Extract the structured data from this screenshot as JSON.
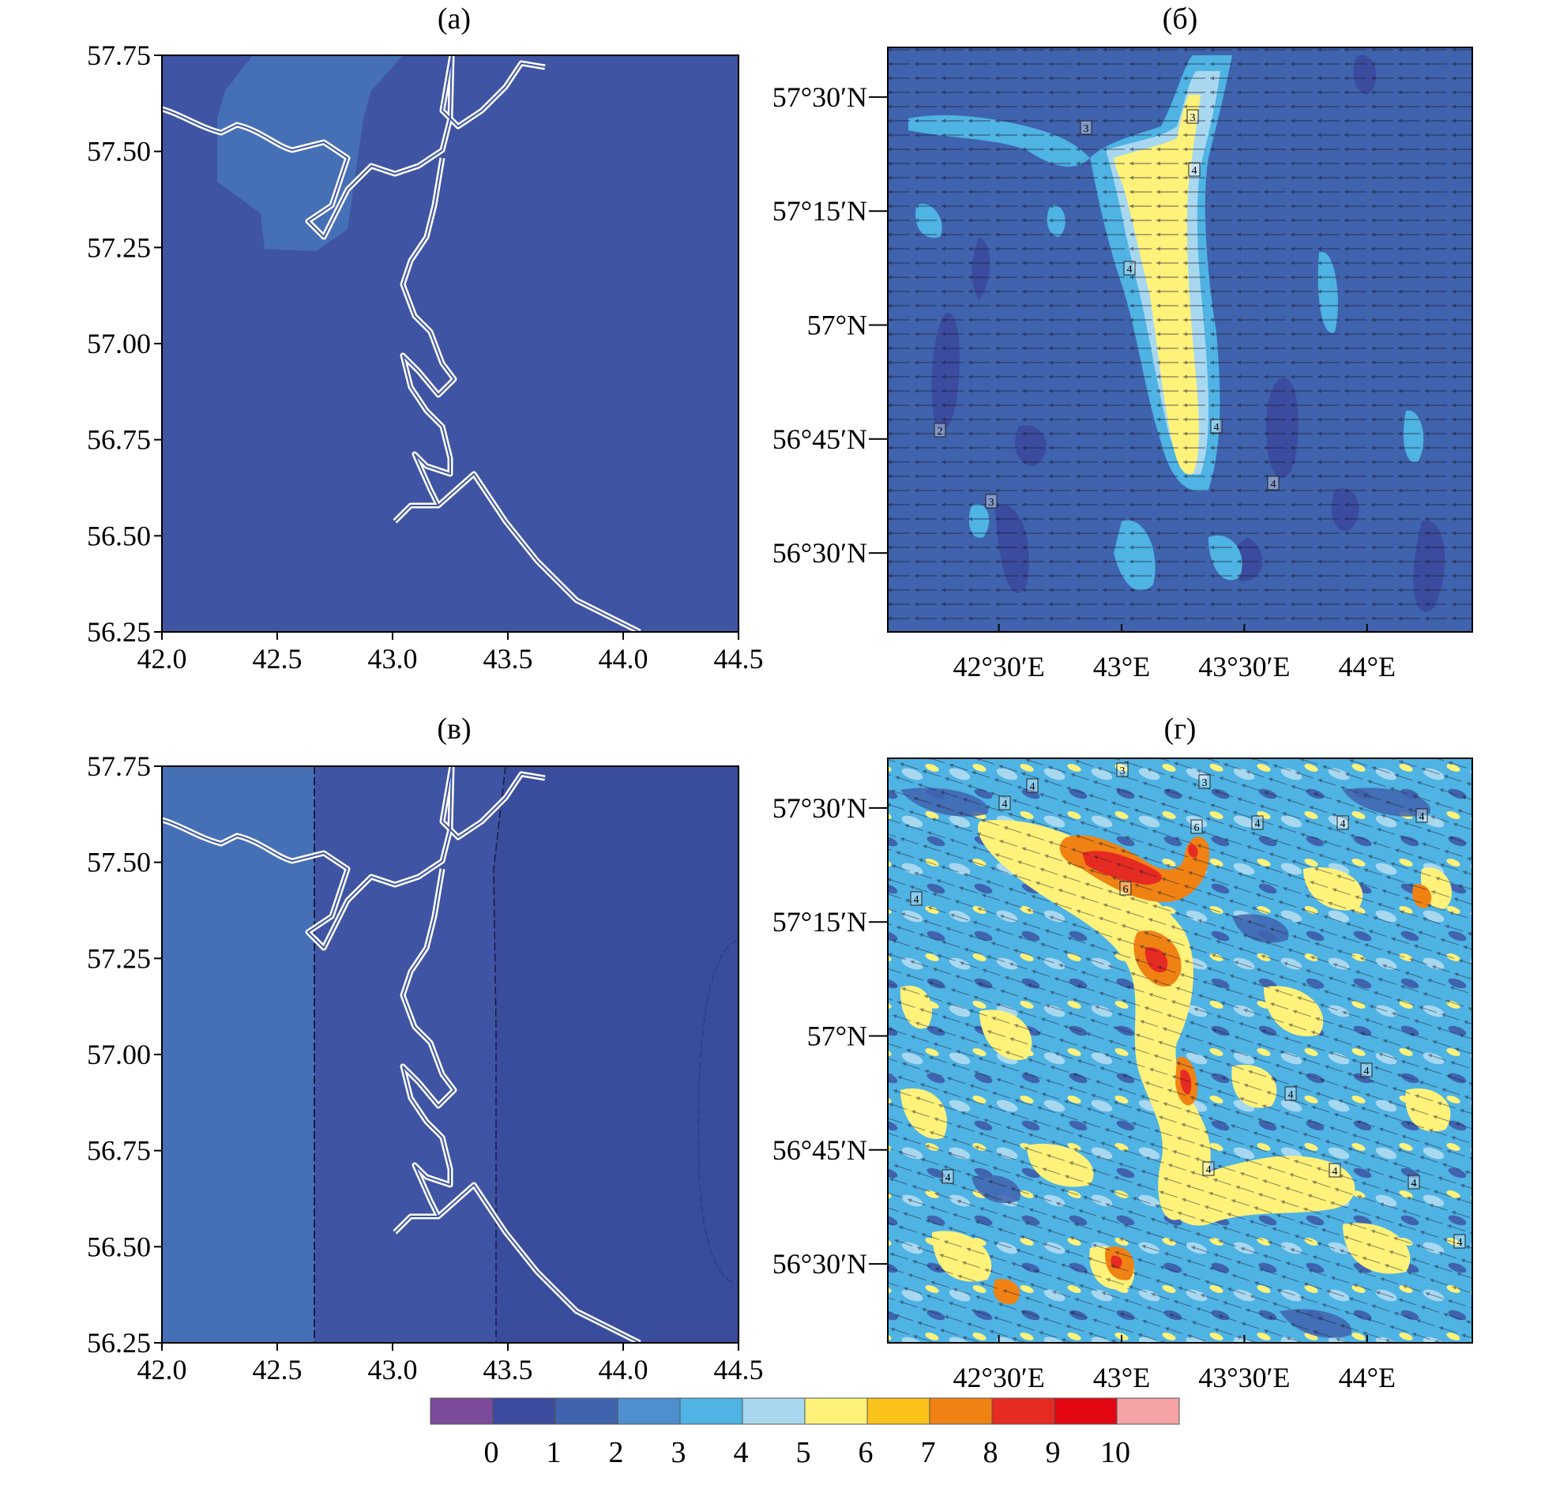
{
  "figure": {
    "panels": [
      {
        "id": "a",
        "title": "(а)",
        "x_ticks": [
          "42.0",
          "42.5",
          "43.0",
          "43.5",
          "44.0",
          "44.5"
        ],
        "y_ticks": [
          "57.75",
          "57.50",
          "57.25",
          "57.00",
          "56.75",
          "56.50",
          "56.25"
        ],
        "x_range": [
          42.0,
          44.5
        ],
        "y_range": [
          56.25,
          57.75
        ],
        "fill_levels": [
          {
            "level": 1,
            "color": "#3f55a3"
          },
          {
            "level": 2,
            "color": "#4670b5"
          }
        ]
      },
      {
        "id": "b",
        "title": "(б)",
        "x_ticks": [
          "42°30′E",
          "43°E",
          "43°30′E",
          "44°E"
        ],
        "y_ticks": [
          "57°30′N",
          "57°15′N",
          "57°N",
          "56°45′N",
          "56°30′N"
        ],
        "contour_labels": [
          "3",
          "3",
          "4",
          "4",
          "4",
          "4",
          "2",
          "3"
        ]
      },
      {
        "id": "v",
        "title": "(в)",
        "x_ticks": [
          "42.0",
          "42.5",
          "43.0",
          "43.5",
          "44.0",
          "44.5"
        ],
        "y_ticks": [
          "57.75",
          "57.50",
          "57.25",
          "57.00",
          "56.75",
          "56.50",
          "56.25"
        ],
        "x_range": [
          42.0,
          44.5
        ],
        "y_range": [
          56.25,
          57.75
        ],
        "fill_levels": [
          {
            "level": 1,
            "color": "#3a4c9c"
          },
          {
            "level": 2,
            "color": "#4670b5"
          }
        ]
      },
      {
        "id": "g",
        "title": "(г)",
        "x_ticks": [
          "42°30′E",
          "43°E",
          "43°30′E",
          "44°E"
        ],
        "y_ticks": [
          "57°30′N",
          "57°15′N",
          "57°N",
          "56°45′N",
          "56°30′N"
        ],
        "contour_labels": [
          "3",
          "3",
          "4",
          "4",
          "4",
          "4",
          "4",
          "6",
          "6",
          "4",
          "4",
          "4",
          "4",
          "4",
          "4",
          "4",
          "4"
        ]
      }
    ],
    "colorbar": {
      "labels": [
        "0",
        "1",
        "2",
        "3",
        "4",
        "5",
        "6",
        "7",
        "8",
        "9",
        "10"
      ],
      "colors": [
        "#7b4a9a",
        "#3b4b9e",
        "#3f63ad",
        "#4d8fcf",
        "#4fb3e4",
        "#a8d8f0",
        "#fff27a",
        "#fbc21a",
        "#f08214",
        "#e62b22",
        "#e30613",
        "#f4a2a5"
      ]
    },
    "palette": {
      "reservoir_outline": "#ffffff",
      "panel_border": "#000000"
    }
  }
}
